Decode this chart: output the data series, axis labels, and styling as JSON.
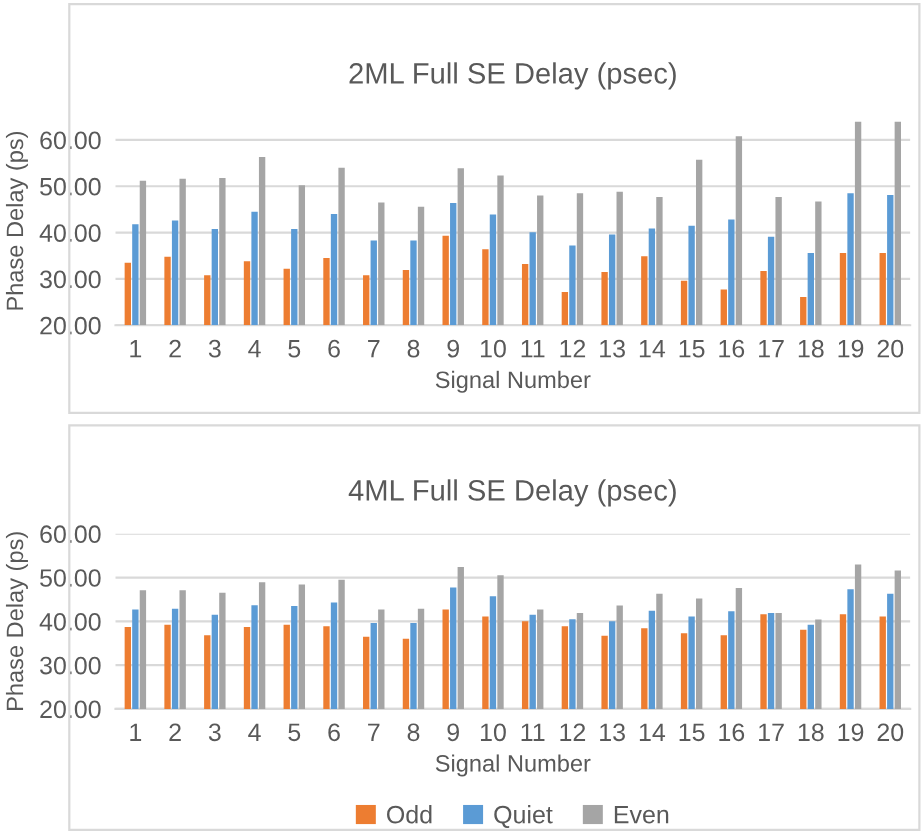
{
  "chart_data": [
    {
      "type": "bar",
      "title": "2ML Full SE Delay (psec)",
      "xlabel": "Signal Number",
      "ylabel": "Phase Delay (ps)",
      "categories": [
        "1",
        "2",
        "3",
        "4",
        "5",
        "6",
        "7",
        "8",
        "9",
        "10",
        "11",
        "12",
        "13",
        "14",
        "15",
        "16",
        "17",
        "18",
        "19",
        "20"
      ],
      "series": [
        {
          "name": "Odd",
          "color": "#ed7d31",
          "values": [
            33.5,
            34.8,
            30.8,
            33.8,
            32.2,
            34.5,
            30.8,
            31.9,
            39.3,
            36.4,
            33.2,
            27.2,
            31.5,
            34.9,
            29.6,
            27.7,
            31.7,
            26.1,
            35.6,
            35.6
          ]
        },
        {
          "name": "Quiet",
          "color": "#5b9bd5",
          "values": [
            41.8,
            42.6,
            40.8,
            44.5,
            40.8,
            44.0,
            38.3,
            38.3,
            46.4,
            43.9,
            40.1,
            37.2,
            39.6,
            40.9,
            41.5,
            42.8,
            39.1,
            35.6,
            48.5,
            48.1
          ]
        },
        {
          "name": "Even",
          "color": "#a5a5a5",
          "values": [
            51.2,
            51.6,
            51.8,
            56.3,
            50.2,
            54.0,
            46.5,
            45.6,
            53.9,
            52.3,
            48.0,
            48.5,
            48.8,
            47.7,
            55.7,
            60.8,
            47.7,
            46.7,
            63.9,
            63.9
          ]
        }
      ],
      "ylim": [
        20,
        65
      ],
      "yticks": [
        {
          "value": 20,
          "label": "20.00"
        },
        {
          "value": 30,
          "label": "30.00"
        },
        {
          "value": 40,
          "label": "40.00"
        },
        {
          "value": 50,
          "label": "50.00"
        },
        {
          "value": 60,
          "label": "60.00"
        }
      ],
      "grid": "y",
      "legend": "bottom"
    },
    {
      "type": "bar",
      "title": "4ML Full SE Delay (psec)",
      "xlabel": "Signal Number",
      "ylabel": "Phase Delay (ps)",
      "categories": [
        "1",
        "2",
        "3",
        "4",
        "5",
        "6",
        "7",
        "8",
        "9",
        "10",
        "11",
        "12",
        "13",
        "14",
        "15",
        "16",
        "17",
        "18",
        "19",
        "20"
      ],
      "series": [
        {
          "name": "Odd",
          "color": "#ed7d31",
          "values": [
            38.7,
            39.2,
            36.8,
            38.7,
            39.2,
            38.9,
            36.5,
            36.0,
            42.7,
            41.1,
            40.0,
            38.9,
            36.7,
            38.4,
            37.3,
            36.8,
            41.6,
            38.1,
            41.6,
            41.1
          ]
        },
        {
          "name": "Quiet",
          "color": "#5b9bd5",
          "values": [
            42.7,
            42.9,
            41.5,
            43.7,
            43.5,
            44.3,
            39.6,
            39.6,
            47.7,
            45.7,
            41.5,
            40.5,
            40.0,
            42.4,
            41.1,
            42.3,
            41.9,
            39.2,
            47.3,
            46.3
          ]
        },
        {
          "name": "Even",
          "color": "#a5a5a5",
          "values": [
            47.1,
            47.1,
            46.5,
            48.9,
            48.4,
            49.5,
            42.7,
            42.9,
            52.4,
            50.5,
            42.7,
            41.9,
            43.6,
            46.3,
            45.2,
            47.6,
            41.9,
            40.4,
            53.0,
            51.6
          ]
        }
      ],
      "ylim": [
        20,
        60
      ],
      "yticks": [
        {
          "value": 20,
          "label": "20.00"
        },
        {
          "value": 30,
          "label": "30.00"
        },
        {
          "value": 40,
          "label": "40.00"
        },
        {
          "value": 50,
          "label": "50.00"
        },
        {
          "value": 60,
          "label": "60.00"
        }
      ],
      "grid": "y",
      "legend": "bottom"
    }
  ]
}
